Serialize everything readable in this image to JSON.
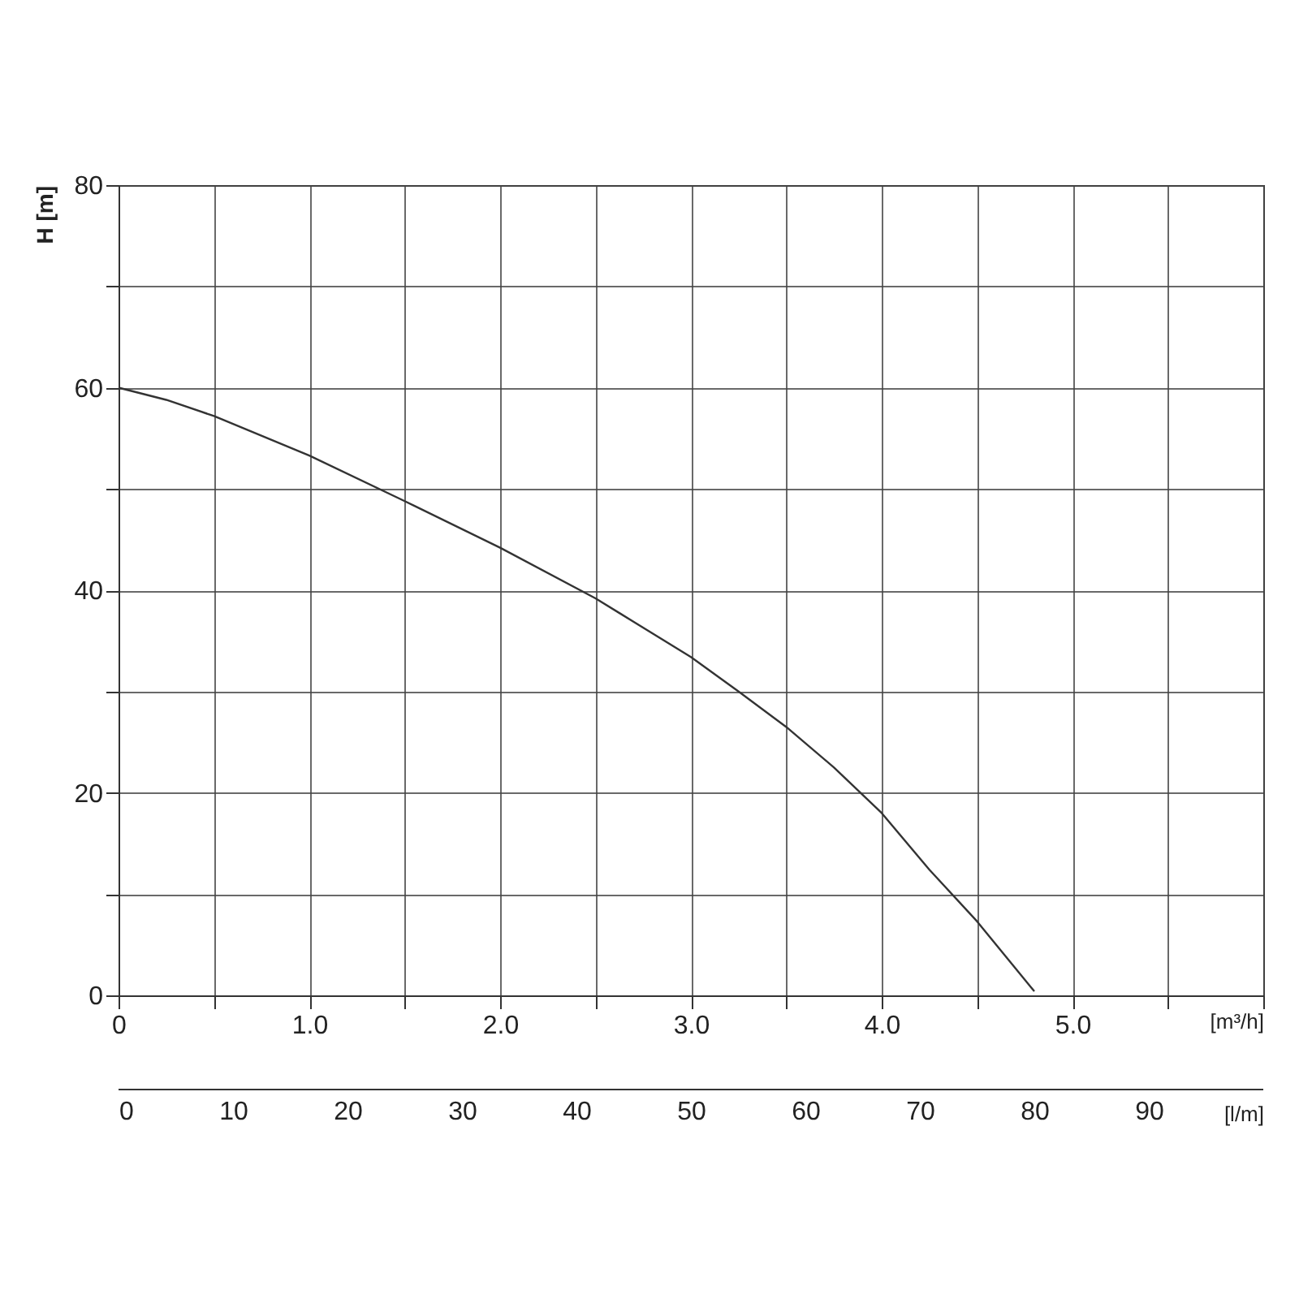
{
  "chart_data": {
    "type": "line",
    "xlabel": "[m³/h]",
    "ylabel": "H [m]",
    "x2label": "[l/m]",
    "xlim": [
      0,
      6
    ],
    "xticks": [
      0,
      {
        "value": 0.5,
        "label": null
      },
      {
        "value": 1,
        "label": "1.0"
      },
      {
        "value": 1.5,
        "label": null
      },
      {
        "value": 2,
        "label": "2.0"
      },
      {
        "value": 2.5,
        "label": null
      },
      {
        "value": 3,
        "label": "3.0"
      },
      {
        "value": 3.5,
        "label": null
      },
      {
        "value": 4,
        "label": "4.0"
      },
      {
        "value": 4.5,
        "label": null
      },
      {
        "value": 5,
        "label": "5.0"
      },
      {
        "value": 5.5,
        "label": null
      },
      {
        "value": 6,
        "label": null
      }
    ],
    "x2lim": [
      0,
      100
    ],
    "x2ticks": [
      0,
      10,
      20,
      30,
      40,
      50,
      60,
      70,
      80,
      90
    ],
    "ylim": [
      0,
      80
    ],
    "yticks": [
      0,
      {
        "value": 10,
        "label": null
      },
      20,
      {
        "value": 30,
        "label": null
      },
      40,
      {
        "value": 50,
        "label": null
      },
      60,
      {
        "value": 70,
        "label": null
      },
      80
    ],
    "grid": true,
    "marker": "none",
    "line_style": "solid",
    "series": [
      {
        "color": "#333333",
        "x": [
          0,
          0.25,
          0.5,
          1,
          1.5,
          2,
          2.5,
          3,
          3.25,
          3.5,
          3.75,
          4,
          4.25,
          4.5,
          4.8
        ],
        "values": [
          60,
          58.8,
          57.2,
          53.3,
          48.8,
          44.2,
          39.2,
          33.4,
          30,
          26.5,
          22.5,
          18,
          12.4,
          7.3,
          0.4
        ]
      }
    ]
  }
}
